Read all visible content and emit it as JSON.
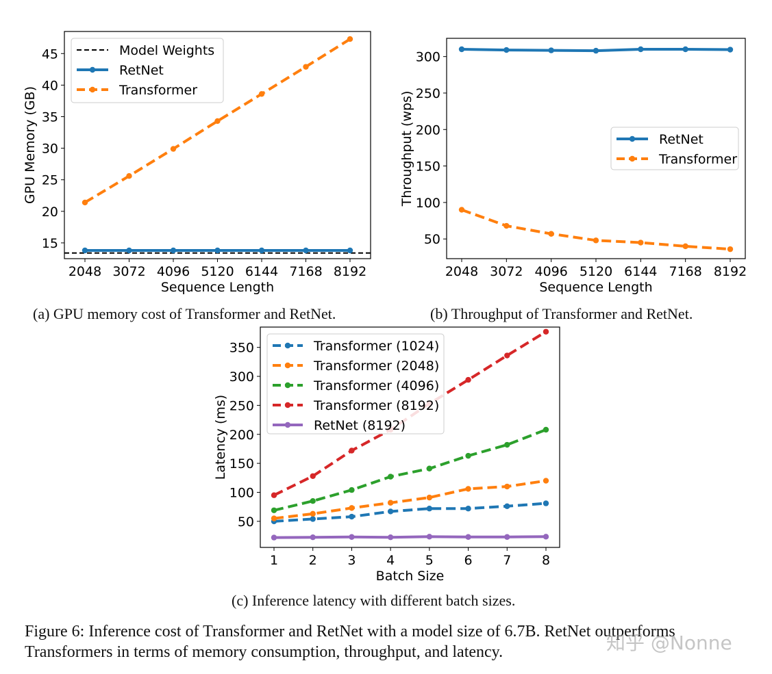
{
  "chart_data": [
    {
      "id": "a",
      "type": "line",
      "xlabel": "Sequence Length",
      "ylabel": "GPU Memory (GB)",
      "x": [
        2048,
        3072,
        4096,
        5120,
        6144,
        7168,
        8192
      ],
      "xticks": [
        "2048",
        "3072",
        "4096",
        "5120",
        "6144",
        "7168",
        "8192"
      ],
      "ylim": [
        12.5,
        48.5
      ],
      "yticks": [
        15,
        20,
        25,
        30,
        35,
        40,
        45
      ],
      "hline": {
        "name": "Model Weights",
        "value": 13.4,
        "color": "#000000",
        "style": "dashed"
      },
      "series": [
        {
          "name": "RetNet",
          "color": "#1f77b4",
          "style": "solid",
          "values": [
            13.8,
            13.8,
            13.8,
            13.8,
            13.8,
            13.8,
            13.8
          ]
        },
        {
          "name": "Transformer",
          "color": "#ff7f0e",
          "style": "dashed",
          "values": [
            21.4,
            25.6,
            29.9,
            34.3,
            38.6,
            42.9,
            47.3
          ]
        }
      ],
      "legend": [
        "Model Weights",
        "RetNet",
        "Transformer"
      ],
      "legend_position": "upper-left"
    },
    {
      "id": "b",
      "type": "line",
      "xlabel": "Sequence Length",
      "ylabel": "Throughput (wps)",
      "x": [
        2048,
        3072,
        4096,
        5120,
        6144,
        7168,
        8192
      ],
      "xticks": [
        "2048",
        "3072",
        "4096",
        "5120",
        "6144",
        "7168",
        "8192"
      ],
      "ylim": [
        23,
        325
      ],
      "yticks": [
        50,
        100,
        150,
        200,
        250,
        300
      ],
      "series": [
        {
          "name": "RetNet",
          "color": "#1f77b4",
          "style": "solid",
          "values": [
            310,
            309,
            308.5,
            308,
            310,
            310,
            309.5
          ]
        },
        {
          "name": "Transformer",
          "color": "#ff7f0e",
          "style": "dashed",
          "values": [
            90,
            68,
            57,
            48,
            45,
            40,
            36
          ]
        }
      ],
      "legend": [
        "RetNet",
        "Transformer"
      ],
      "legend_position": "center-right"
    },
    {
      "id": "c",
      "type": "line",
      "xlabel": "Batch Size",
      "ylabel": "Latency (ms)",
      "x": [
        1,
        2,
        3,
        4,
        5,
        6,
        7,
        8
      ],
      "xticks": [
        "1",
        "2",
        "3",
        "4",
        "5",
        "6",
        "7",
        "8"
      ],
      "ylim": [
        5,
        385
      ],
      "yticks": [
        50,
        100,
        150,
        200,
        250,
        300,
        350
      ],
      "series": [
        {
          "name": "Transformer (1024)",
          "color": "#1f77b4",
          "style": "dashed",
          "values": [
            50,
            54,
            58,
            67,
            72,
            72,
            76,
            81
          ]
        },
        {
          "name": "Transformer (2048)",
          "color": "#ff7f0e",
          "style": "dashed",
          "values": [
            55,
            63,
            73,
            82,
            91,
            106,
            110,
            120
          ]
        },
        {
          "name": "Transformer (4096)",
          "color": "#2ca02c",
          "style": "dashed",
          "values": [
            69,
            85,
            104,
            127,
            141,
            163,
            182,
            208
          ]
        },
        {
          "name": "Transformer (8192)",
          "color": "#d62728",
          "style": "dashed",
          "values": [
            95,
            128,
            172,
            208,
            253,
            294,
            336,
            377
          ]
        },
        {
          "name": "RetNet (8192)",
          "color": "#9467bd",
          "style": "solid",
          "values": [
            22,
            22.5,
            23,
            22.5,
            23.5,
            23,
            23,
            23.5
          ]
        }
      ],
      "legend": [
        "Transformer (1024)",
        "Transformer (2048)",
        "Transformer (4096)",
        "Transformer (8192)",
        "RetNet (8192)"
      ],
      "legend_position": "upper-left"
    }
  ],
  "captions": {
    "a": "(a) GPU memory cost of Transformer and RetNet.",
    "b": "(b) Throughput of Transformer and RetNet.",
    "c": "(c) Inference latency with different batch sizes.",
    "figure": "Figure 6: Inference cost of Transformer and RetNet with a model size of 6.7B. RetNet outperforms Transformers in terms of memory consumption, throughput, and latency."
  },
  "watermark": "知乎 @Nonne"
}
